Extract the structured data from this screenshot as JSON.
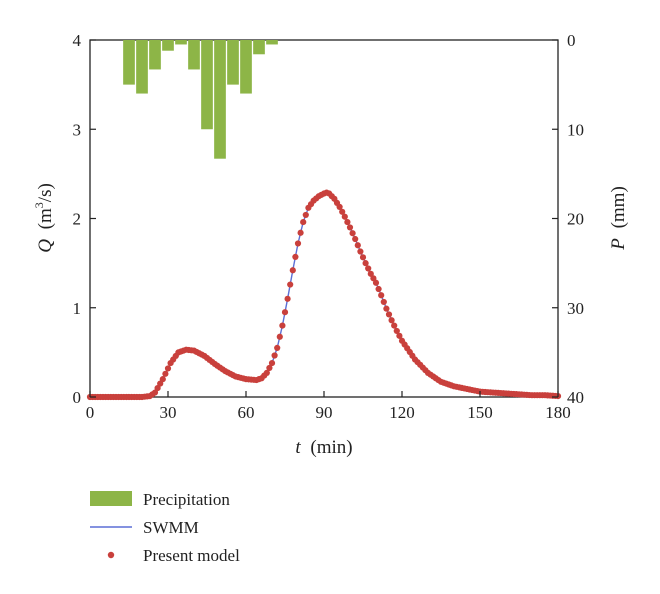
{
  "chart_data": {
    "type": "line",
    "xlabel_var": "t",
    "xlabel_unit": "(min)",
    "ylabel_left_var": "Q",
    "ylabel_left_unit_pre": "(m",
    "ylabel_left_unit_sup": "3",
    "ylabel_left_unit_post": "/s)",
    "ylabel_right_var": "P",
    "ylabel_right_unit": "(mm)",
    "xlim": [
      0,
      180
    ],
    "ylim_left": [
      0,
      4
    ],
    "ylim_right": [
      0,
      40
    ],
    "right_axis_inverted": true,
    "x_ticks": [
      "0",
      "30",
      "60",
      "90",
      "120",
      "150",
      "180"
    ],
    "y_left_ticks": [
      "0",
      "1",
      "2",
      "3",
      "4"
    ],
    "y_right_ticks": [
      "0",
      "10",
      "20",
      "30",
      "40"
    ],
    "grid": false,
    "legend_position": "below",
    "colors": {
      "precipitation": "#8db547",
      "swmm": "#5b6fd6",
      "present_model": "#c9403c"
    },
    "precipitation": {
      "name": "Precipitation",
      "bar_width_min": 4.5,
      "t": [
        15,
        20,
        25,
        30,
        35,
        40,
        45,
        50,
        55,
        60,
        65,
        70,
        75,
        80,
        85,
        90,
        95,
        100
      ],
      "p": [
        5,
        6,
        3.3,
        1.2,
        0.5,
        3.3,
        10,
        13.3,
        5,
        6,
        1.6,
        0.5,
        0,
        0,
        0,
        0,
        0,
        0
      ]
    },
    "swmm": {
      "name": "SWMM",
      "t": [
        0,
        10,
        20,
        23,
        25,
        28,
        31,
        34,
        37,
        40,
        44,
        48,
        52,
        56,
        60,
        64,
        66,
        68,
        70,
        72,
        74,
        76,
        78,
        80,
        82,
        84,
        86,
        88,
        90,
        91,
        92,
        94,
        96,
        98,
        100,
        102,
        104,
        106,
        108,
        110,
        112,
        114,
        116,
        118,
        120,
        125,
        130,
        135,
        140,
        145,
        150,
        155,
        160,
        165,
        170,
        175,
        180
      ],
      "q": [
        0,
        0,
        0,
        0.01,
        0.05,
        0.2,
        0.38,
        0.5,
        0.53,
        0.52,
        0.46,
        0.37,
        0.29,
        0.23,
        0.2,
        0.19,
        0.21,
        0.27,
        0.38,
        0.55,
        0.8,
        1.1,
        1.42,
        1.72,
        1.96,
        2.12,
        2.2,
        2.25,
        2.28,
        2.29,
        2.28,
        2.22,
        2.13,
        2.02,
        1.9,
        1.77,
        1.63,
        1.5,
        1.38,
        1.28,
        1.14,
        0.99,
        0.86,
        0.74,
        0.63,
        0.42,
        0.27,
        0.17,
        0.12,
        0.09,
        0.06,
        0.05,
        0.04,
        0.03,
        0.02,
        0.02,
        0.01
      ]
    },
    "present_model": {
      "name": "Present model",
      "point_step_min": 1
    }
  },
  "legend": {
    "precipitation_label": "Precipitation",
    "swmm_label": "SWMM",
    "present_model_label": "Present model"
  }
}
